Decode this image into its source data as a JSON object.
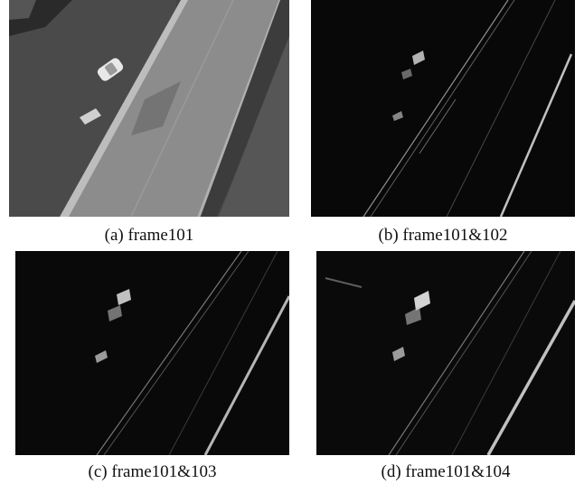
{
  "figure": {
    "panels": [
      {
        "caption": "(a) frame101"
      },
      {
        "caption": "(b) frame101&102"
      },
      {
        "caption": "(c) frame101&103"
      },
      {
        "caption": "(d) frame101&104"
      }
    ]
  }
}
